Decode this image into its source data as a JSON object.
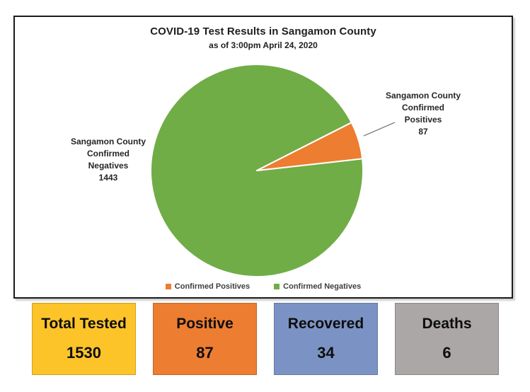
{
  "chart_data": {
    "type": "pie",
    "title": "COVID-19 Test Results in Sangamon County",
    "subtitle": "as of 3:00pm April 24, 2020",
    "total": 1530,
    "slices": [
      {
        "label": "Confirmed Positives",
        "value": 87,
        "color": "#ED7D31"
      },
      {
        "label": "Confirmed Negatives",
        "value": 1443,
        "color": "#70AD47"
      }
    ],
    "legend_position": "bottom",
    "callouts": [
      {
        "side": "left",
        "lines": [
          "Sangamon County",
          "Confirmed",
          "Negatives",
          "1443"
        ]
      },
      {
        "side": "right",
        "lines": [
          "Sangamon County",
          "Confirmed",
          "Positives",
          "87"
        ]
      }
    ]
  },
  "legend": {
    "items": [
      {
        "label": "Confirmed Positives",
        "color": "#ED7D31"
      },
      {
        "label": "Confirmed Negatives",
        "color": "#70AD47"
      }
    ]
  },
  "stat_cards": [
    {
      "label": "Total Tested",
      "value": "1530",
      "color": "#FDC42A"
    },
    {
      "label": "Positive",
      "value": "87",
      "color": "#ED7D31"
    },
    {
      "label": "Recovered",
      "value": "34",
      "color": "#7B93C4"
    },
    {
      "label": "Deaths",
      "value": "6",
      "color": "#ABA7A6"
    }
  ]
}
